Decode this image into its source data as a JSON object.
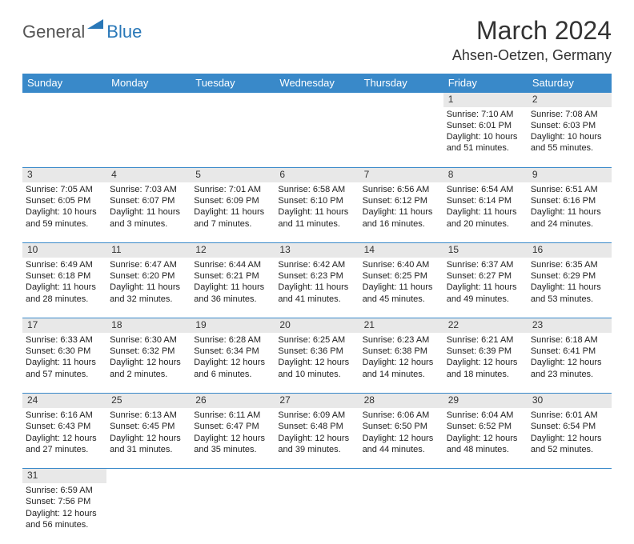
{
  "logo": {
    "general": "General",
    "blue": "Blue"
  },
  "title": "March 2024",
  "location": "Ahsen-Oetzen, Germany",
  "day_headers": [
    "Sunday",
    "Monday",
    "Tuesday",
    "Wednesday",
    "Thursday",
    "Friday",
    "Saturday"
  ],
  "colors": {
    "header_bg": "#3989c9",
    "header_fg": "#ffffff",
    "daynum_bg": "#e8e8e8",
    "border": "#3989c9",
    "logo_blue": "#2a78b8",
    "logo_gray": "#555555"
  },
  "weeks": [
    [
      null,
      null,
      null,
      null,
      null,
      {
        "n": "1",
        "sr": "Sunrise: 7:10 AM",
        "ss": "Sunset: 6:01 PM",
        "d1": "Daylight: 10 hours",
        "d2": "and 51 minutes."
      },
      {
        "n": "2",
        "sr": "Sunrise: 7:08 AM",
        "ss": "Sunset: 6:03 PM",
        "d1": "Daylight: 10 hours",
        "d2": "and 55 minutes."
      }
    ],
    [
      {
        "n": "3",
        "sr": "Sunrise: 7:05 AM",
        "ss": "Sunset: 6:05 PM",
        "d1": "Daylight: 10 hours",
        "d2": "and 59 minutes."
      },
      {
        "n": "4",
        "sr": "Sunrise: 7:03 AM",
        "ss": "Sunset: 6:07 PM",
        "d1": "Daylight: 11 hours",
        "d2": "and 3 minutes."
      },
      {
        "n": "5",
        "sr": "Sunrise: 7:01 AM",
        "ss": "Sunset: 6:09 PM",
        "d1": "Daylight: 11 hours",
        "d2": "and 7 minutes."
      },
      {
        "n": "6",
        "sr": "Sunrise: 6:58 AM",
        "ss": "Sunset: 6:10 PM",
        "d1": "Daylight: 11 hours",
        "d2": "and 11 minutes."
      },
      {
        "n": "7",
        "sr": "Sunrise: 6:56 AM",
        "ss": "Sunset: 6:12 PM",
        "d1": "Daylight: 11 hours",
        "d2": "and 16 minutes."
      },
      {
        "n": "8",
        "sr": "Sunrise: 6:54 AM",
        "ss": "Sunset: 6:14 PM",
        "d1": "Daylight: 11 hours",
        "d2": "and 20 minutes."
      },
      {
        "n": "9",
        "sr": "Sunrise: 6:51 AM",
        "ss": "Sunset: 6:16 PM",
        "d1": "Daylight: 11 hours",
        "d2": "and 24 minutes."
      }
    ],
    [
      {
        "n": "10",
        "sr": "Sunrise: 6:49 AM",
        "ss": "Sunset: 6:18 PM",
        "d1": "Daylight: 11 hours",
        "d2": "and 28 minutes."
      },
      {
        "n": "11",
        "sr": "Sunrise: 6:47 AM",
        "ss": "Sunset: 6:20 PM",
        "d1": "Daylight: 11 hours",
        "d2": "and 32 minutes."
      },
      {
        "n": "12",
        "sr": "Sunrise: 6:44 AM",
        "ss": "Sunset: 6:21 PM",
        "d1": "Daylight: 11 hours",
        "d2": "and 36 minutes."
      },
      {
        "n": "13",
        "sr": "Sunrise: 6:42 AM",
        "ss": "Sunset: 6:23 PM",
        "d1": "Daylight: 11 hours",
        "d2": "and 41 minutes."
      },
      {
        "n": "14",
        "sr": "Sunrise: 6:40 AM",
        "ss": "Sunset: 6:25 PM",
        "d1": "Daylight: 11 hours",
        "d2": "and 45 minutes."
      },
      {
        "n": "15",
        "sr": "Sunrise: 6:37 AM",
        "ss": "Sunset: 6:27 PM",
        "d1": "Daylight: 11 hours",
        "d2": "and 49 minutes."
      },
      {
        "n": "16",
        "sr": "Sunrise: 6:35 AM",
        "ss": "Sunset: 6:29 PM",
        "d1": "Daylight: 11 hours",
        "d2": "and 53 minutes."
      }
    ],
    [
      {
        "n": "17",
        "sr": "Sunrise: 6:33 AM",
        "ss": "Sunset: 6:30 PM",
        "d1": "Daylight: 11 hours",
        "d2": "and 57 minutes."
      },
      {
        "n": "18",
        "sr": "Sunrise: 6:30 AM",
        "ss": "Sunset: 6:32 PM",
        "d1": "Daylight: 12 hours",
        "d2": "and 2 minutes."
      },
      {
        "n": "19",
        "sr": "Sunrise: 6:28 AM",
        "ss": "Sunset: 6:34 PM",
        "d1": "Daylight: 12 hours",
        "d2": "and 6 minutes."
      },
      {
        "n": "20",
        "sr": "Sunrise: 6:25 AM",
        "ss": "Sunset: 6:36 PM",
        "d1": "Daylight: 12 hours",
        "d2": "and 10 minutes."
      },
      {
        "n": "21",
        "sr": "Sunrise: 6:23 AM",
        "ss": "Sunset: 6:38 PM",
        "d1": "Daylight: 12 hours",
        "d2": "and 14 minutes."
      },
      {
        "n": "22",
        "sr": "Sunrise: 6:21 AM",
        "ss": "Sunset: 6:39 PM",
        "d1": "Daylight: 12 hours",
        "d2": "and 18 minutes."
      },
      {
        "n": "23",
        "sr": "Sunrise: 6:18 AM",
        "ss": "Sunset: 6:41 PM",
        "d1": "Daylight: 12 hours",
        "d2": "and 23 minutes."
      }
    ],
    [
      {
        "n": "24",
        "sr": "Sunrise: 6:16 AM",
        "ss": "Sunset: 6:43 PM",
        "d1": "Daylight: 12 hours",
        "d2": "and 27 minutes."
      },
      {
        "n": "25",
        "sr": "Sunrise: 6:13 AM",
        "ss": "Sunset: 6:45 PM",
        "d1": "Daylight: 12 hours",
        "d2": "and 31 minutes."
      },
      {
        "n": "26",
        "sr": "Sunrise: 6:11 AM",
        "ss": "Sunset: 6:47 PM",
        "d1": "Daylight: 12 hours",
        "d2": "and 35 minutes."
      },
      {
        "n": "27",
        "sr": "Sunrise: 6:09 AM",
        "ss": "Sunset: 6:48 PM",
        "d1": "Daylight: 12 hours",
        "d2": "and 39 minutes."
      },
      {
        "n": "28",
        "sr": "Sunrise: 6:06 AM",
        "ss": "Sunset: 6:50 PM",
        "d1": "Daylight: 12 hours",
        "d2": "and 44 minutes."
      },
      {
        "n": "29",
        "sr": "Sunrise: 6:04 AM",
        "ss": "Sunset: 6:52 PM",
        "d1": "Daylight: 12 hours",
        "d2": "and 48 minutes."
      },
      {
        "n": "30",
        "sr": "Sunrise: 6:01 AM",
        "ss": "Sunset: 6:54 PM",
        "d1": "Daylight: 12 hours",
        "d2": "and 52 minutes."
      }
    ],
    [
      {
        "n": "31",
        "sr": "Sunrise: 6:59 AM",
        "ss": "Sunset: 7:56 PM",
        "d1": "Daylight: 12 hours",
        "d2": "and 56 minutes."
      },
      null,
      null,
      null,
      null,
      null,
      null
    ]
  ]
}
